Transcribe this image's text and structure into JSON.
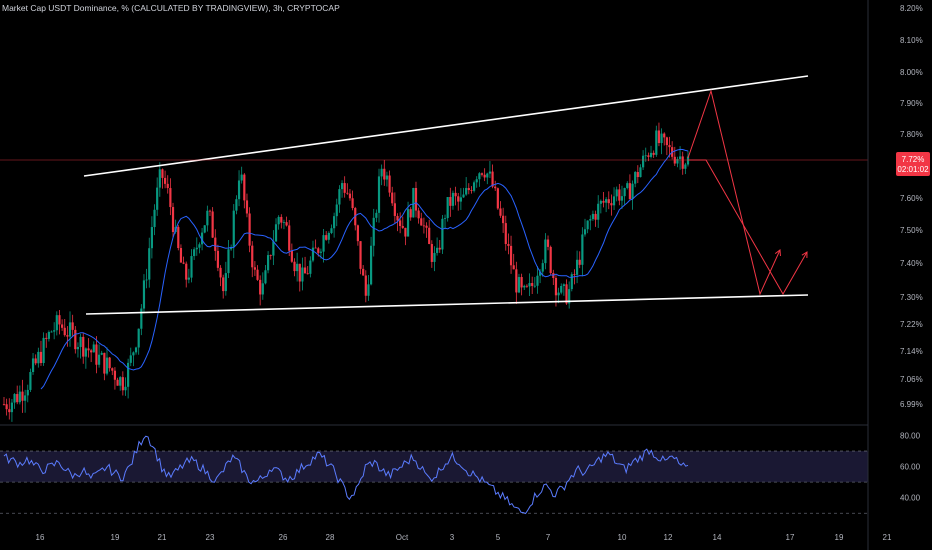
{
  "header": {
    "title": "Market Cap USDT Dominance, % (CALCULATED BY TRADINGVIEW), 3h, CRYPTOCAP"
  },
  "price_axis": {
    "ticks": [
      "8.20%",
      "8.10%",
      "8.00%",
      "7.90%",
      "7.80%",
      "7.60%",
      "7.50%",
      "7.40%",
      "7.30%",
      "7.22%",
      "7.14%",
      "7.06%",
      "6.99%"
    ],
    "tick_values": [
      8.2,
      8.1,
      8.0,
      7.9,
      7.8,
      7.6,
      7.5,
      7.4,
      7.3,
      7.22,
      7.14,
      7.06,
      6.99
    ]
  },
  "current_price": {
    "label": "7.72%",
    "countdown": "02:01:02",
    "value": 7.72,
    "color": "#f23645"
  },
  "rsi_axis": {
    "ticks": [
      "80.00",
      "60.00",
      "40.00"
    ],
    "tick_values": [
      80,
      60,
      40
    ]
  },
  "time_axis": {
    "labels": [
      "16",
      "19",
      "21",
      "23",
      "26",
      "28",
      "Oct",
      "3",
      "5",
      "7",
      "10",
      "12",
      "14",
      "17",
      "19",
      "21"
    ]
  },
  "colors": {
    "background": "#000000",
    "up_candle": "#089981",
    "down_candle": "#f23645",
    "moving_average": "#2962ff",
    "channel_lines": "#ffffff",
    "projection": "#f23645",
    "rsi_line": "#5b7cff",
    "rsi_band": "#1a1833"
  },
  "chart_data": {
    "type": "candlestick",
    "title": "Market Cap USDT Dominance, % (CALCULATED BY TRADINGVIEW), 3h, CRYPTOCAP",
    "y_unit": "%",
    "ylim": [
      6.96,
      8.22
    ],
    "close_path": [
      6.99,
      7.0,
      7.02,
      7.05,
      7.1,
      7.15,
      7.2,
      7.22,
      7.2,
      7.18,
      7.16,
      7.14,
      7.12,
      7.1,
      7.08,
      7.05,
      7.1,
      7.2,
      7.35,
      7.55,
      7.68,
      7.6,
      7.45,
      7.35,
      7.4,
      7.5,
      7.55,
      7.45,
      7.3,
      7.5,
      7.7,
      7.5,
      7.35,
      7.32,
      7.45,
      7.55,
      7.5,
      7.4,
      7.35,
      7.4,
      7.45,
      7.5,
      7.55,
      7.65,
      7.6,
      7.45,
      7.3,
      7.5,
      7.7,
      7.65,
      7.55,
      7.5,
      7.6,
      7.55,
      7.45,
      7.4,
      7.55,
      7.6,
      7.58,
      7.62,
      7.68,
      7.7,
      7.65,
      7.55,
      7.45,
      7.35,
      7.3,
      7.32,
      7.4,
      7.45,
      7.35,
      7.3,
      7.32,
      7.4,
      7.5,
      7.55,
      7.58,
      7.6,
      7.62,
      7.6,
      7.65,
      7.7,
      7.75,
      7.78,
      7.76,
      7.74,
      7.73,
      7.72
    ],
    "projection": [
      [
        7.72,
        7.93,
        7.31,
        7.44
      ],
      [
        7.72,
        7.72,
        7.31,
        7.44
      ]
    ],
    "rsi": {
      "ylim": [
        25,
        90
      ],
      "upper_band": 70,
      "lower_band": 50,
      "bottom_line": 30,
      "path": [
        66,
        64,
        62,
        65,
        60,
        58,
        60,
        63,
        57,
        54,
        58,
        52,
        55,
        60,
        56,
        53,
        60,
        72,
        82,
        73,
        60,
        53,
        57,
        62,
        64,
        60,
        55,
        51,
        58,
        66,
        61,
        52,
        50,
        53,
        60,
        56,
        52,
        55,
        60,
        64,
        68,
        63,
        57,
        48,
        40,
        46,
        60,
        63,
        58,
        54,
        58,
        62,
        66,
        60,
        52,
        55,
        62,
        66,
        63,
        57,
        54,
        50,
        46,
        42,
        38,
        33,
        30,
        37,
        44,
        48,
        42,
        46,
        53,
        58,
        56,
        61,
        66,
        68,
        62,
        58,
        63,
        66,
        71,
        67,
        63,
        66,
        61,
        58
      ]
    },
    "time_labels": [
      "16",
      "19",
      "21",
      "23",
      "26",
      "28",
      "Oct",
      "3",
      "5",
      "7",
      "10",
      "12",
      "14",
      "17",
      "19",
      "21"
    ],
    "price_ticks": [
      8.2,
      8.1,
      8.0,
      7.9,
      7.8,
      7.6,
      7.5,
      7.4,
      7.3,
      7.22,
      7.14,
      7.06,
      6.99
    ],
    "rsi_ticks": [
      80,
      60,
      40
    ]
  }
}
